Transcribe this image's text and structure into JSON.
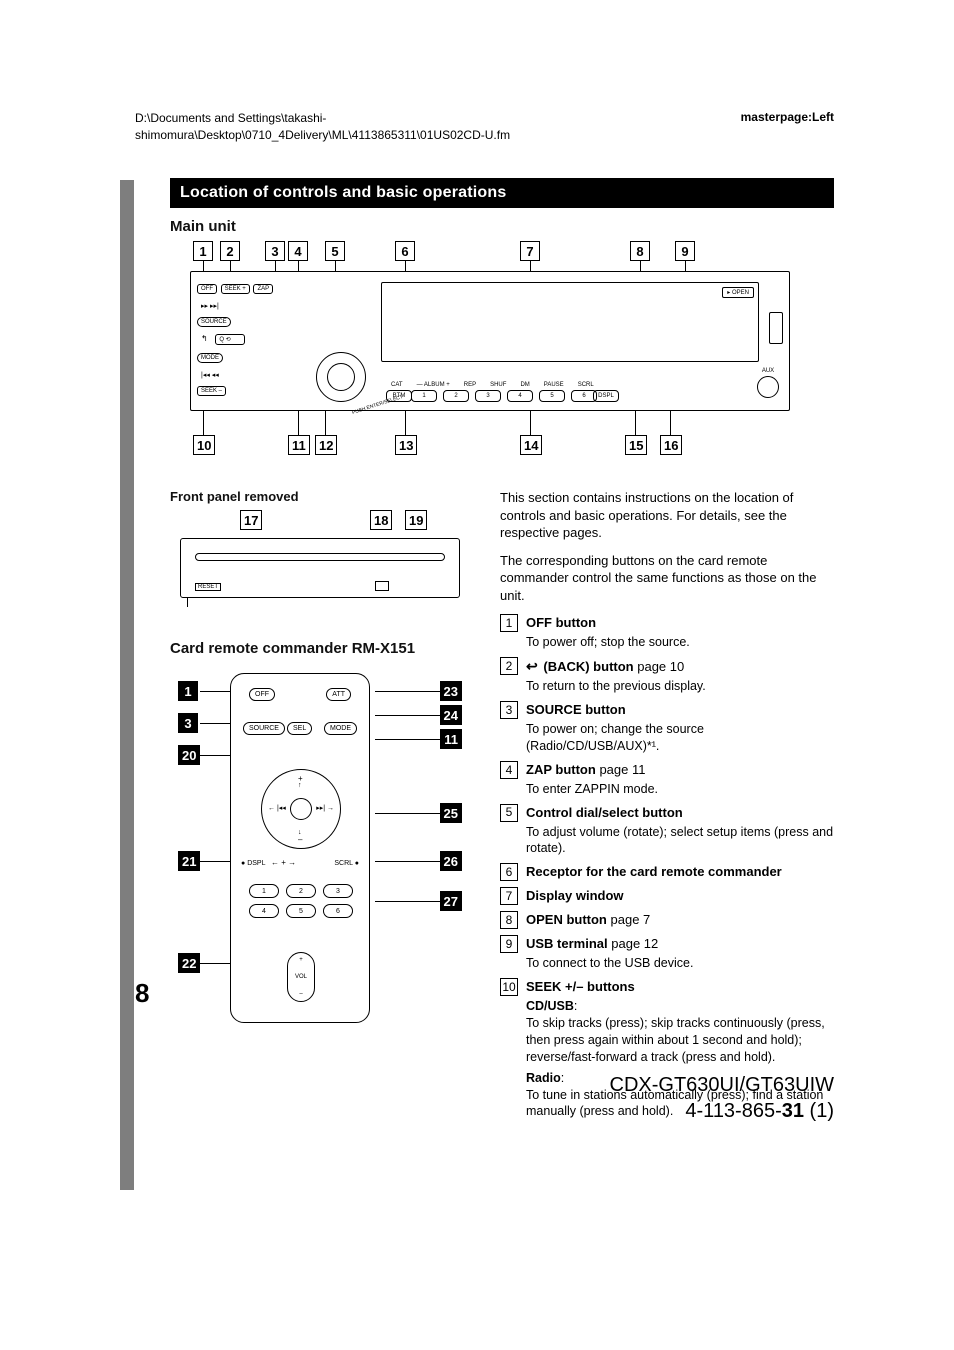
{
  "meta": {
    "path1": "D:\\Documents and Settings\\takashi-",
    "path2": "shimomura\\Desktop\\0710_4Delivery\\ML\\4113865311\\01US02CD-U.fm",
    "masterpage": "masterpage:Left"
  },
  "section_title": "Location of controls and basic operations",
  "main_unit_heading": "Main unit",
  "front_panel_heading": "Front panel removed",
  "remote_heading": "Card remote commander RM-X151",
  "diagram": {
    "top_callouts": [
      "1",
      "2",
      "3",
      "4",
      "5",
      "6",
      "7",
      "8",
      "9"
    ],
    "bottom_callouts": [
      "10",
      "11",
      "12",
      "13",
      "14",
      "15",
      "16"
    ],
    "fpr_callouts": [
      "17",
      "18",
      "19"
    ],
    "remote_left": [
      "1",
      "3",
      "20",
      "21",
      "22"
    ],
    "remote_right": [
      "23",
      "24",
      "11",
      "25",
      "26",
      "27"
    ],
    "mu": {
      "off": "OFF",
      "seek_p": "SEEK +",
      "zap": "ZAP",
      "src": "SOURCE",
      "mode": "MODE",
      "seek_m": "SEEK –",
      "open": "OPEN",
      "btm": "BTM",
      "dspl": "DSPL",
      "aux": "AUX",
      "push": "PUSH ENTER/SELECT",
      "labels": [
        "CAT",
        "— ALBUM +",
        "REP",
        "SHUF",
        "DM",
        "PAUSE",
        "SCRL"
      ],
      "numbtns": [
        "1",
        "2",
        "3",
        "4",
        "5",
        "6"
      ]
    },
    "remote_btns": {
      "off": "OFF",
      "att": "ATT",
      "source": "SOURCE",
      "sel": "SEL",
      "mode": "MODE",
      "dspl": "DSPL",
      "scrl": "SCRL",
      "vol": "VOL",
      "nums": [
        "1",
        "2",
        "3",
        "4",
        "5",
        "6"
      ]
    },
    "fpr_reset": "RESET"
  },
  "intro1": "This section contains instructions on the location of controls and basic operations. For details, see the respective pages.",
  "intro2": "The corresponding buttons on the card remote commander control the same functions as those on the unit.",
  "items": [
    {
      "n": "1",
      "title": "OFF button",
      "desc": "To power off; stop the source."
    },
    {
      "n": "2",
      "icon": "back",
      "title": "(BACK) button",
      "pg": "page 10",
      "desc": "To return to the previous display."
    },
    {
      "n": "3",
      "title": "SOURCE button",
      "desc": "To power on; change the source (Radio/CD/USB/AUX)*¹."
    },
    {
      "n": "4",
      "title": "ZAP button",
      "pg": "page 11",
      "desc": "To enter ZAPPIN mode."
    },
    {
      "n": "5",
      "title": "Control dial/select button",
      "desc": "To adjust volume (rotate); select setup items (press and rotate)."
    },
    {
      "n": "6",
      "title": "Receptor for the card remote commander"
    },
    {
      "n": "7",
      "title": "Display window"
    },
    {
      "n": "8",
      "title": "OPEN button",
      "pg": "page 7"
    },
    {
      "n": "9",
      "title": "USB terminal",
      "pg": "page 12",
      "desc": "To connect to the USB device."
    },
    {
      "n": "10",
      "title": "SEEK +/– buttons",
      "sub": [
        {
          "label": "CD/USB",
          "text": ":\nTo skip tracks (press); skip tracks continuously (press, then press again within about 1 second and hold); reverse/fast-forward a track (press and hold)."
        },
        {
          "label": "Radio",
          "text": ":\nTo tune in stations automatically (press); find a station manually (press and hold)."
        }
      ]
    }
  ],
  "page_number": "8",
  "footer": {
    "model": "CDX-GT630UI/GT63UIW",
    "pn_pre": "4-113-865-",
    "pn_b": "31",
    "pn_post": " (1)"
  }
}
